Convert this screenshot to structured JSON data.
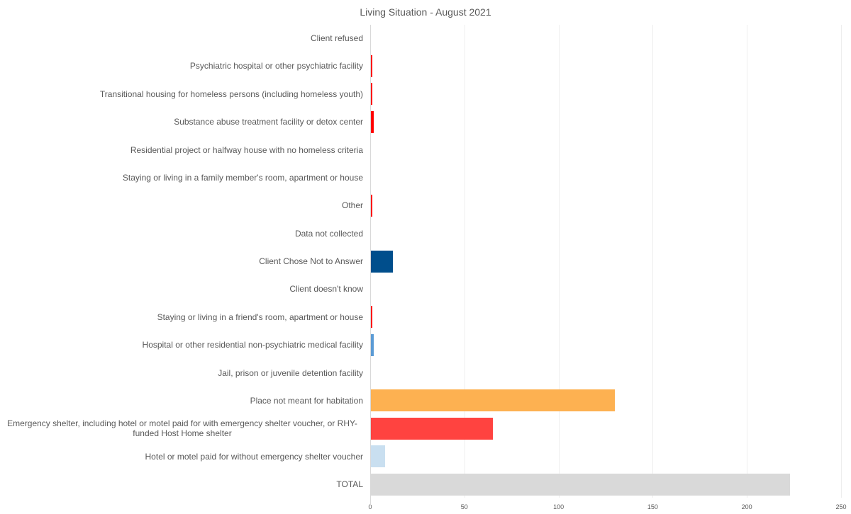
{
  "chart_data": {
    "type": "bar",
    "orientation": "horizontal",
    "title": "Living Situation - August 2021",
    "xlabel": "",
    "ylabel": "",
    "xlim": [
      0,
      250
    ],
    "xticks": [
      "0",
      "50",
      "100",
      "150",
      "200",
      "250"
    ],
    "grid": true,
    "categories": [
      "Client refused",
      "Psychiatric hospital or other psychiatric facility",
      "Transitional housing for homeless persons (including homeless youth)",
      "Substance abuse treatment facility or detox center",
      "Residential project or halfway house with no homeless criteria",
      "Staying or living in a family member's room, apartment or house",
      "Other",
      "Data not collected",
      "Client Chose Not to Answer",
      "Client doesn't know",
      "Staying or living in a friend's room, apartment or house",
      "Hospital or other residential non-psychiatric medical facility",
      "Jail, prison or juvenile detention facility",
      "Place not meant for habitation",
      "Emergency shelter, including hotel or motel paid for with emergency shelter voucher, or RHY-funded Host Home shelter",
      "Hotel or motel paid for without emergency shelter voucher",
      "TOTAL"
    ],
    "values": [
      0,
      1,
      1,
      2,
      0,
      0,
      1,
      0,
      12,
      0,
      1,
      2,
      0,
      130,
      65,
      8,
      223
    ],
    "colors": [
      "#FF0000",
      "#FF0000",
      "#FF0000",
      "#FF0000",
      "#FF0000",
      "#FF0000",
      "#FF0000",
      "#FF0000",
      "#004E8C",
      "#FF0000",
      "#FF0000",
      "#5B9BD5",
      "#FF0000",
      "#FDB151",
      "#FF4340",
      "#C9DFF0",
      "#D9D9D9"
    ]
  }
}
